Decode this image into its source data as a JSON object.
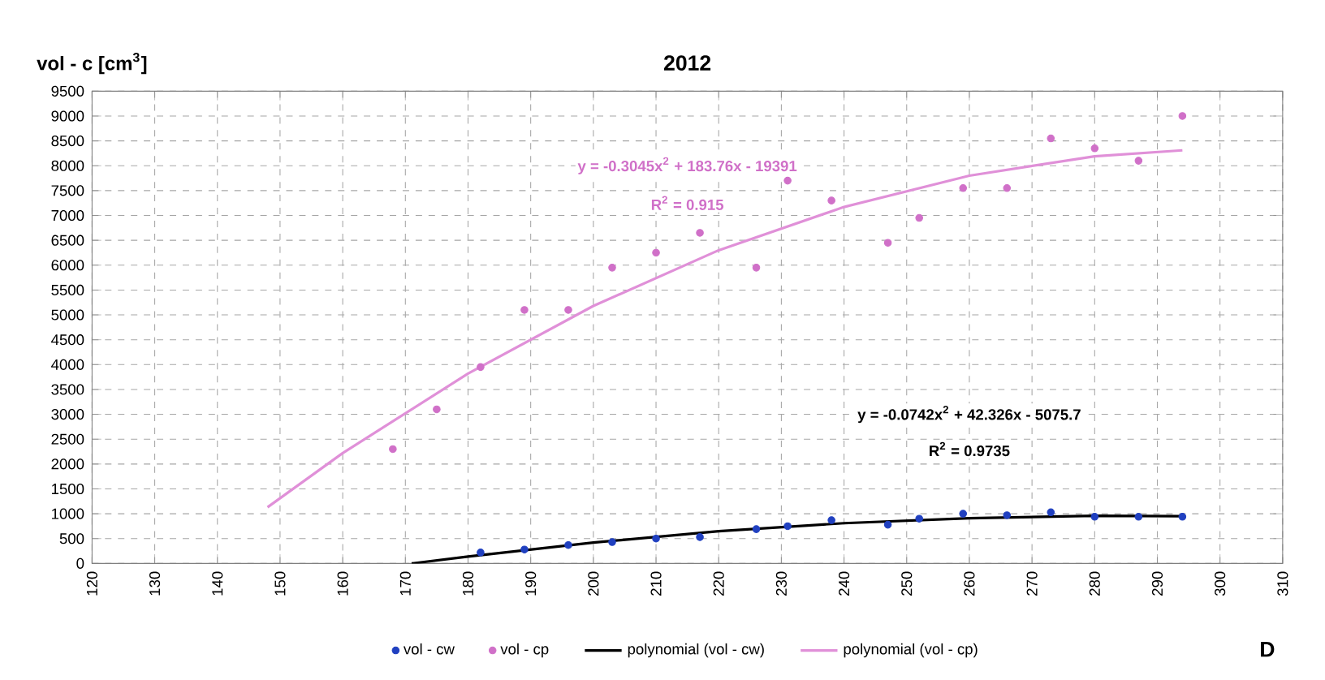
{
  "chart_data": {
    "type": "scatter",
    "title": "2012",
    "xlabel": "D",
    "ylabel": "vol - c [cm$^{3}$]",
    "xlim": [
      120,
      310
    ],
    "xticks": [
      120,
      130,
      140,
      150,
      160,
      170,
      180,
      190,
      200,
      210,
      220,
      230,
      240,
      250,
      260,
      270,
      280,
      290,
      300,
      310
    ],
    "ylim": [
      0,
      9500
    ],
    "yticks": [
      0,
      500,
      1000,
      1500,
      2000,
      2500,
      3000,
      3500,
      4000,
      4500,
      5000,
      5500,
      6000,
      6500,
      7000,
      7500,
      8000,
      8500,
      9000,
      9500
    ],
    "grid": true,
    "legend": "bottom",
    "marker": "circle",
    "annotations": [
      "y = -0.3045x$^{2}$ + 183.76x - 19391",
      "R$^{2}$ = 0.915",
      "y = -0.0742x$^{2}$ + 42.326x - 5075.7",
      "R$^{2}$ = 0.9735"
    ],
    "series": [
      {
        "name": "vol - cw",
        "color": "#2040c0",
        "x": [
          182,
          189,
          196,
          203,
          210,
          217,
          226,
          231,
          238,
          247,
          252,
          259,
          266,
          273,
          280,
          287,
          294
        ],
        "values": [
          220,
          280,
          370,
          430,
          500,
          530,
          690,
          750,
          870,
          780,
          900,
          1000,
          970,
          1030,
          940,
          940,
          940
        ]
      },
      {
        "name": "vol - cp",
        "color": "#d070c8",
        "x": [
          168,
          175,
          182,
          189,
          196,
          203,
          210,
          217,
          226,
          231,
          238,
          247,
          252,
          259,
          266,
          273,
          280,
          287,
          294
        ],
        "values": [
          2300,
          3100,
          3950,
          5100,
          5100,
          5950,
          6250,
          6650,
          5950,
          7700,
          7300,
          6450,
          6950,
          7550,
          7550,
          8550,
          8350,
          8100,
          9000
        ]
      },
      {
        "name": "polynomial (vol - cw)",
        "type": "line",
        "marker": "none",
        "color": "#000000",
        "x": [
          171,
          180,
          200,
          220,
          240,
          260,
          280,
          294
        ],
        "values": [
          0,
          140,
          420,
          650,
          810,
          910,
          960,
          950
        ]
      },
      {
        "name": "polynomial (vol - cp)",
        "type": "line",
        "marker": "none",
        "color": "#e090d8",
        "x": [
          148,
          160,
          180,
          200,
          220,
          240,
          260,
          280,
          294
        ],
        "values": [
          1130,
          2220,
          3820,
          5180,
          6300,
          7170,
          7800,
          8190,
          8310
        ]
      }
    ]
  }
}
